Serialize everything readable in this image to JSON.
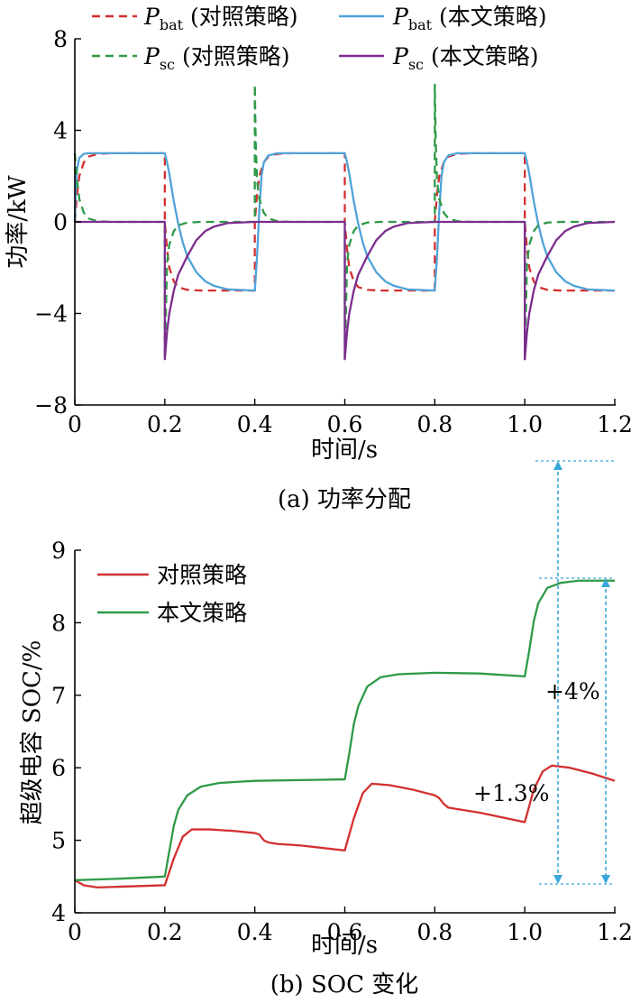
{
  "chart_data": [
    {
      "type": "line",
      "caption": "(a)  功率分配",
      "ylabel": "功率/kW",
      "xlabel": "时间/s",
      "xlim": [
        0,
        1.2
      ],
      "ylim": [
        -8,
        8
      ],
      "xticks": [
        "0",
        "0.2",
        "0.4",
        "0.6",
        "0.8",
        "1.0",
        "1.2"
      ],
      "yticks": [
        "8",
        "4",
        "0",
        "−4",
        "−8"
      ],
      "legend_position": "top",
      "series": [
        {
          "name_main": "P",
          "name_sub": "bat",
          "name_rest": " (对照策略)",
          "color": "#d32f2f",
          "dash": "dashed",
          "x": [
            0,
            0.005,
            0.01,
            0.02,
            0.03,
            0.05,
            0.08,
            0.2,
            0.2,
            0.205,
            0.21,
            0.22,
            0.23,
            0.25,
            0.28,
            0.4,
            0.4,
            0.405,
            0.41,
            0.42,
            0.43,
            0.45,
            0.48,
            0.6,
            0.6,
            0.605,
            0.61,
            0.62,
            0.63,
            0.65,
            0.68,
            0.8,
            0.8,
            0.805,
            0.81,
            0.82,
            0.83,
            0.85,
            0.88,
            1.0,
            1.0,
            1.005,
            1.01,
            1.02,
            1.03,
            1.05,
            1.08,
            1.2
          ],
          "y": [
            0,
            1.2,
            2.0,
            2.6,
            2.85,
            2.97,
            3.0,
            3.0,
            0,
            -1.2,
            -2.0,
            -2.6,
            -2.85,
            -2.97,
            -3.0,
            -3.0,
            0,
            1.2,
            2.0,
            2.6,
            2.85,
            2.97,
            3.0,
            3.0,
            0,
            -1.2,
            -2.0,
            -2.6,
            -2.85,
            -2.97,
            -3.0,
            -3.0,
            0,
            1.2,
            2.0,
            2.6,
            2.85,
            2.97,
            3.0,
            3.0,
            0,
            -1.2,
            -2.0,
            -2.6,
            -2.85,
            -2.97,
            -3.0,
            -3.0
          ]
        },
        {
          "name_main": "P",
          "name_sub": "bat",
          "name_rest": " (本文策略)",
          "color": "#4fa3d8",
          "dash": "solid",
          "x": [
            0,
            0.002,
            0.005,
            0.01,
            0.02,
            0.03,
            0.05,
            0.2,
            0.2,
            0.205,
            0.21,
            0.215,
            0.22,
            0.23,
            0.24,
            0.25,
            0.27,
            0.29,
            0.31,
            0.34,
            0.4,
            0.4,
            0.405,
            0.41,
            0.415,
            0.42,
            0.43,
            0.45,
            0.6,
            0.6,
            0.605,
            0.61,
            0.615,
            0.62,
            0.63,
            0.64,
            0.65,
            0.67,
            0.69,
            0.71,
            0.74,
            0.8,
            0.8,
            0.805,
            0.81,
            0.815,
            0.82,
            0.83,
            0.85,
            1.0,
            1.0,
            1.005,
            1.01,
            1.015,
            1.02,
            1.03,
            1.04,
            1.05,
            1.07,
            1.09,
            1.11,
            1.14,
            1.2
          ],
          "y": [
            0,
            1.5,
            2.3,
            2.8,
            2.97,
            3.0,
            3.0,
            3.0,
            3.0,
            2.6,
            2.1,
            1.5,
            0.9,
            -0.1,
            -0.9,
            -1.5,
            -2.2,
            -2.6,
            -2.8,
            -2.95,
            -3.0,
            -3.0,
            -1.5,
            0.5,
            2.0,
            2.6,
            2.9,
            3.0,
            3.0,
            3.0,
            2.6,
            2.1,
            1.5,
            0.9,
            -0.1,
            -0.9,
            -1.5,
            -2.2,
            -2.6,
            -2.8,
            -2.95,
            -3.0,
            -3.0,
            -1.5,
            0.5,
            2.0,
            2.6,
            2.9,
            3.0,
            3.0,
            3.0,
            2.6,
            2.1,
            1.5,
            0.9,
            -0.1,
            -0.9,
            -1.5,
            -2.2,
            -2.6,
            -2.8,
            -2.95,
            -3.0
          ]
        },
        {
          "name_main": "P",
          "name_sub": "sc",
          "name_rest": " (对照策略)",
          "color": "#2e9a47",
          "dash": "dashed",
          "x": [
            0,
            0.005,
            0.01,
            0.02,
            0.03,
            0.05,
            0.08,
            0.2,
            0.2,
            0.205,
            0.21,
            0.22,
            0.23,
            0.25,
            0.28,
            0.4,
            0.4,
            0.402,
            0.405,
            0.41,
            0.42,
            0.43,
            0.45,
            0.48,
            0.6,
            0.6,
            0.605,
            0.61,
            0.62,
            0.63,
            0.65,
            0.68,
            0.8,
            0.8,
            0.802,
            0.805,
            0.81,
            0.82,
            0.83,
            0.85,
            0.88,
            1.0,
            1.0,
            1.005,
            1.01,
            1.02,
            1.03,
            1.05,
            1.08,
            1.2
          ],
          "y": [
            3.0,
            1.8,
            1.0,
            0.4,
            0.15,
            0.03,
            0,
            0,
            -6.0,
            -1.8,
            -1.0,
            -0.4,
            -0.15,
            -0.03,
            0,
            0,
            6.0,
            3.5,
            1.8,
            1.0,
            0.4,
            0.15,
            0.03,
            0,
            0,
            -6.0,
            -1.8,
            -1.0,
            -0.4,
            -0.15,
            -0.03,
            0,
            0,
            6.0,
            3.5,
            1.8,
            1.0,
            0.4,
            0.15,
            0.03,
            0,
            0,
            -6.0,
            -1.8,
            -1.0,
            -0.4,
            -0.15,
            -0.03,
            0,
            0
          ]
        },
        {
          "name_main": "P",
          "name_sub": "sc",
          "name_rest": " (本文策略)",
          "color": "#7b2d8e",
          "dash": "solid",
          "x": [
            0,
            0.2,
            0.2,
            0.205,
            0.21,
            0.22,
            0.23,
            0.25,
            0.27,
            0.29,
            0.31,
            0.34,
            0.4,
            0.6,
            0.6,
            0.605,
            0.61,
            0.62,
            0.63,
            0.65,
            0.67,
            0.69,
            0.71,
            0.74,
            0.8,
            1.0,
            1.0,
            1.005,
            1.01,
            1.02,
            1.03,
            1.05,
            1.07,
            1.09,
            1.11,
            1.14,
            1.2
          ],
          "y": [
            0,
            0,
            -6.0,
            -4.8,
            -4.0,
            -3.0,
            -2.3,
            -1.5,
            -0.8,
            -0.4,
            -0.2,
            -0.05,
            0,
            0,
            -6.0,
            -4.8,
            -4.0,
            -3.0,
            -2.3,
            -1.5,
            -0.8,
            -0.4,
            -0.2,
            -0.05,
            0,
            0,
            -6.0,
            -4.8,
            -4.0,
            -3.0,
            -2.3,
            -1.5,
            -0.8,
            -0.4,
            -0.2,
            -0.05,
            0
          ]
        }
      ]
    },
    {
      "type": "line",
      "caption": "(b)  SOC 变化",
      "ylabel": "超级电容 SOC/%",
      "xlabel": "时间/s",
      "xlim": [
        0,
        1.2
      ],
      "ylim": [
        4,
        9
      ],
      "xticks": [
        "0",
        "0.2",
        "0.4",
        "0.6",
        "0.8",
        "1.0",
        "1.2"
      ],
      "yticks": [
        "9",
        "8",
        "7",
        "6",
        "5",
        "4"
      ],
      "legend_position": "top-left",
      "series": [
        {
          "name": "对照策略",
          "color": "#d32f2f",
          "x": [
            0,
            0.02,
            0.05,
            0.1,
            0.2,
            0.22,
            0.24,
            0.26,
            0.3,
            0.35,
            0.4,
            0.41,
            0.42,
            0.43,
            0.45,
            0.5,
            0.6,
            0.62,
            0.64,
            0.66,
            0.7,
            0.75,
            0.8,
            0.81,
            0.82,
            0.83,
            0.85,
            0.9,
            1.0,
            1.02,
            1.04,
            1.06,
            1.1,
            1.15,
            1.2
          ],
          "y": [
            4.45,
            4.38,
            4.35,
            4.36,
            4.38,
            4.75,
            5.05,
            5.15,
            5.15,
            5.13,
            5.1,
            5.08,
            5.0,
            4.97,
            4.95,
            4.93,
            4.86,
            5.3,
            5.65,
            5.78,
            5.76,
            5.7,
            5.62,
            5.58,
            5.5,
            5.45,
            5.43,
            5.38,
            5.25,
            5.7,
            5.95,
            6.03,
            6.0,
            5.92,
            5.82
          ]
        },
        {
          "name": "本文策略",
          "color": "#2e9a47",
          "x": [
            0,
            0.1,
            0.2,
            0.21,
            0.22,
            0.23,
            0.25,
            0.28,
            0.32,
            0.4,
            0.5,
            0.6,
            0.61,
            0.62,
            0.63,
            0.65,
            0.68,
            0.72,
            0.8,
            0.9,
            1.0,
            1.01,
            1.02,
            1.03,
            1.05,
            1.08,
            1.12,
            1.2
          ],
          "y": [
            4.45,
            4.47,
            4.5,
            4.85,
            5.2,
            5.42,
            5.62,
            5.74,
            5.79,
            5.82,
            5.83,
            5.84,
            6.2,
            6.6,
            6.85,
            7.12,
            7.25,
            7.29,
            7.31,
            7.3,
            7.26,
            7.62,
            8.02,
            8.27,
            8.48,
            8.55,
            8.58,
            8.58
          ]
        }
      ],
      "annotations": [
        "+4%",
        "+1.3%"
      ]
    }
  ]
}
